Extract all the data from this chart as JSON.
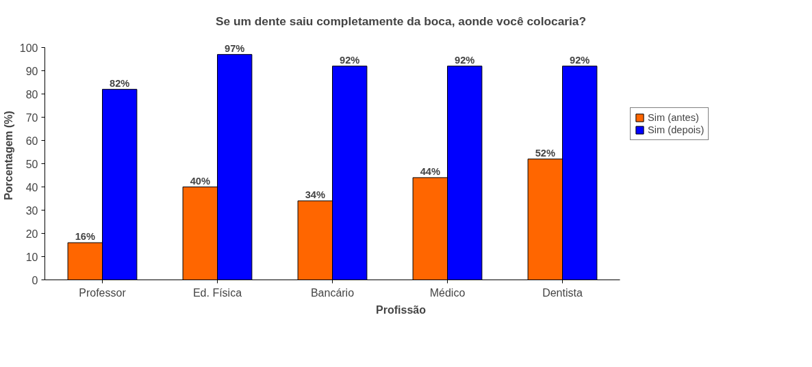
{
  "chart_data": {
    "type": "bar",
    "title": "Se um dente saiu completamente da boca, aonde você colocaria?",
    "xlabel": "Profissão",
    "ylabel": "Porcentagem (%)",
    "categories": [
      "Professor",
      "Ed. Física",
      "Bancário",
      "Médico",
      "Dentista"
    ],
    "series": [
      {
        "name": "Sim (antes)",
        "color": "#ff6600",
        "values": [
          16,
          40,
          34,
          44,
          52
        ],
        "value_labels": [
          "16%",
          "40%",
          "34%",
          "44%",
          "52%"
        ]
      },
      {
        "name": "Sim (depois)",
        "color": "#0000ff",
        "values": [
          82,
          97,
          92,
          92,
          92
        ],
        "value_labels": [
          "82%",
          "97%",
          "92%",
          "92%",
          "92%"
        ]
      }
    ],
    "ylim": [
      0,
      100
    ],
    "yticks": [
      0,
      10,
      20,
      30,
      40,
      50,
      60,
      70,
      80,
      90,
      100
    ],
    "grid": false,
    "legend": "right"
  }
}
